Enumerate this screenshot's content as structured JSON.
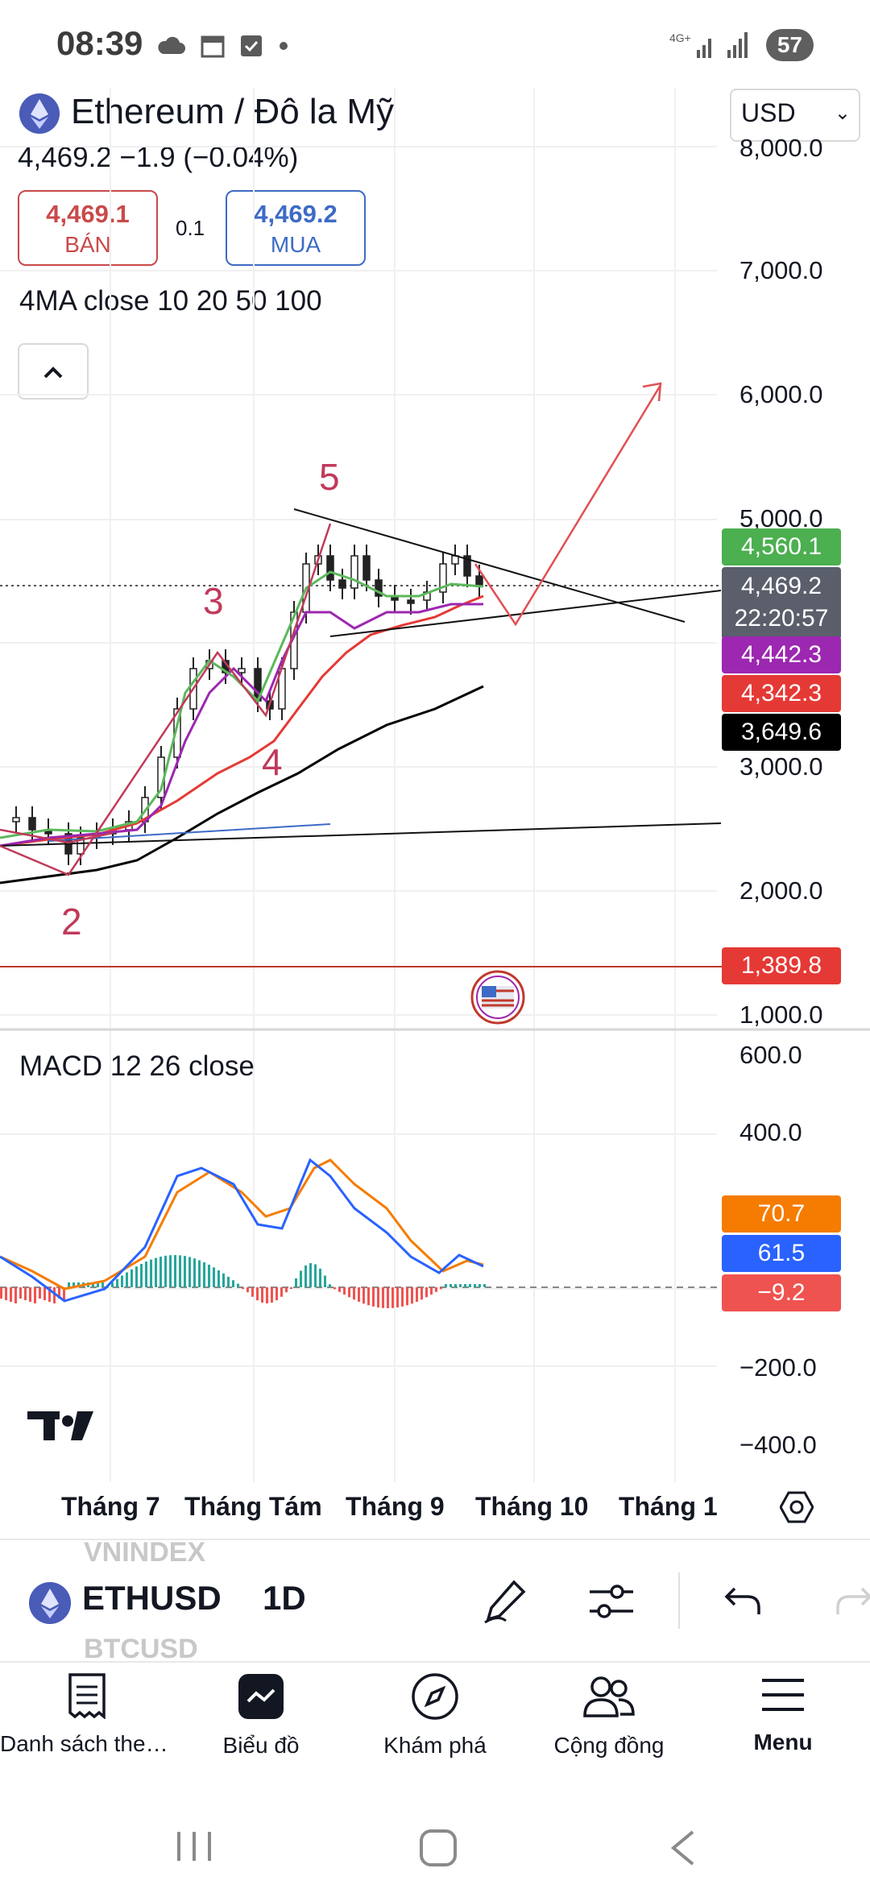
{
  "status": {
    "time": "08:39",
    "battery": "57",
    "network": "4G+"
  },
  "header": {
    "title": "Ethereum / Đô la Mỹ",
    "currency": "USD",
    "price_line": "4,469.2  −1.9 (−0.04%)",
    "sell_value": "4,469.1",
    "sell_label": "BÁN",
    "spread": "0.1",
    "buy_value": "4,469.2",
    "buy_label": "MUA",
    "ma_label": "4MA close 10 20 50 100"
  },
  "price_axis": [
    "8,000.0",
    "7,000.0",
    "6,000.0",
    "5,000.0",
    "3,000.0",
    "2,000.0",
    "1,000.0"
  ],
  "price_tags": {
    "ma10": "4,560.1",
    "current": "4,469.2",
    "countdown": "22:20:57",
    "ma20": "4,442.3",
    "ma50": "4,342.3",
    "ma100": "3,649.6",
    "line_level": "1,389.8"
  },
  "wave_labels": [
    "2",
    "3",
    "4",
    "5"
  ],
  "macd": {
    "label": "MACD 12 26 close",
    "axis": [
      "600.0",
      "400.0",
      "−200.0",
      "−400.0"
    ],
    "signal": "70.7",
    "macd": "61.5",
    "hist": "−9.2"
  },
  "time_axis": [
    "Tháng 7",
    "Tháng Tám",
    "Tháng 9",
    "Tháng 10",
    "Tháng 1"
  ],
  "toolbar": {
    "symbol": "ETHUSD",
    "ghost_above": "VNINDEX",
    "ghost_below": "BTCUSD",
    "interval": "1D"
  },
  "nav": [
    {
      "label": "Danh sách theo…",
      "icon": "watchlist-icon"
    },
    {
      "label": "Biểu đồ",
      "icon": "chart-icon"
    },
    {
      "label": "Khám phá",
      "icon": "compass-icon"
    },
    {
      "label": "Cộng đồng",
      "icon": "community-icon"
    },
    {
      "label": "Menu",
      "icon": "menu-icon"
    }
  ],
  "colors": {
    "ma10": "#5cb85c",
    "ma20": "#9c27b0",
    "ma50": "#e53935",
    "ma100": "#000000",
    "wave": "#d2466e",
    "projection": "#e05055",
    "macd_line": "#2962ff",
    "signal_line": "#f57c00",
    "hist_up": "#26a69a",
    "hist_down": "#ef5350"
  }
}
